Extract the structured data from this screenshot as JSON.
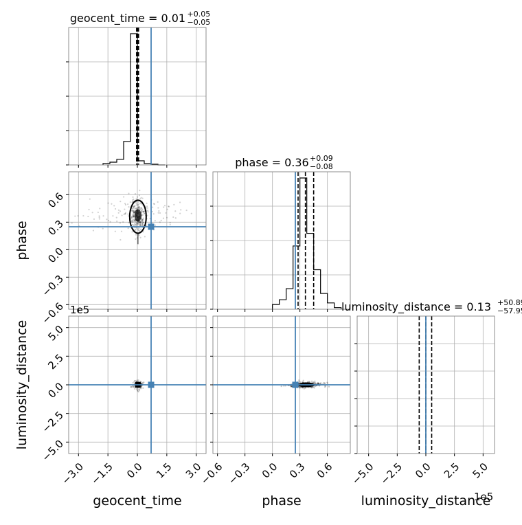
{
  "chart_data": {
    "type": "corner",
    "parameters": [
      "geocent_time",
      "phase",
      "luminosity_distance"
    ],
    "truth": {
      "geocent_time": 0.7,
      "phase": 0.25,
      "luminosity_distance": 0
    },
    "titles": [
      {
        "param": "geocent_time",
        "text": "geocent_time = 0.01",
        "plus": "+0.05",
        "minus": "−0.05"
      },
      {
        "param": "phase",
        "text": "phase = 0.36",
        "plus": "+0.09",
        "minus": "−0.08"
      },
      {
        "param": "luminosity_distance",
        "text": "luminosity_distance = 0.13",
        "plus": "+50.89",
        "minus": "−57.95"
      }
    ],
    "axis_labels": {
      "x": [
        "geocent_time",
        "phase",
        "luminosity_distance"
      ],
      "y": [
        "phase",
        "luminosity_distance"
      ]
    },
    "offset_texts": {
      "left_y": "1e5",
      "bottom_right_x": "1e5"
    },
    "ranges": {
      "geocent_time": [
        -3.5,
        3.5
      ],
      "phase": [
        -0.65,
        0.85
      ],
      "luminosity_distance": [
        -600000,
        600000
      ]
    },
    "ticks": {
      "geocent_time": {
        "values": [
          -3.0,
          -1.5,
          0.0,
          1.5,
          3.0
        ],
        "labels": [
          "−3.0",
          "−1.5",
          "0.0",
          "1.5",
          "3.0"
        ]
      },
      "phase": {
        "values": [
          -0.6,
          -0.3,
          0.0,
          0.3,
          0.6
        ],
        "labels": [
          "−0.6",
          "−0.3",
          "0.0",
          "0.3",
          "0.6"
        ]
      },
      "luminosity_distance": {
        "values": [
          -5.0,
          -2.5,
          0.0,
          2.5,
          5.0
        ],
        "labels": [
          "−5.0",
          "−2.5",
          "0.0",
          "2.5",
          "5.0"
        ]
      }
    },
    "quantile_lines": {
      "geocent_time": [
        -0.04,
        0.01,
        0.06
      ],
      "phase": [
        0.28,
        0.36,
        0.45
      ],
      "luminosity_distance": [
        -0.58,
        0.0013,
        0.51
      ]
    },
    "histograms": {
      "geocent_time": {
        "edges": [
          -1.75,
          -1.4,
          -1.05,
          -0.7,
          -0.35,
          0.0,
          0.35,
          0.7,
          1.05,
          1.4
        ],
        "counts": [
          0.01,
          0.02,
          0.04,
          0.17,
          0.95,
          0.03,
          0.01,
          0.005,
          0
        ]
      },
      "phase": {
        "edges": [
          0.0,
          0.075,
          0.15,
          0.225,
          0.3,
          0.375,
          0.45,
          0.525,
          0.6,
          0.675,
          0.75
        ],
        "counts": [
          0.03,
          0.06,
          0.13,
          0.4,
          0.83,
          0.48,
          0.25,
          0.1,
          0.04,
          0.01
        ]
      },
      "luminosity_distance": {
        "edges": [
          -0.4,
          0.0,
          0.4,
          0.8,
          1.2
        ],
        "counts": [
          0.93,
          0.02,
          0.005,
          0
        ]
      }
    },
    "grid": true,
    "colors": {
      "truth": "#4682b4",
      "hist": "#000000",
      "points": "#000000",
      "grid": "#b0b0b0"
    }
  }
}
